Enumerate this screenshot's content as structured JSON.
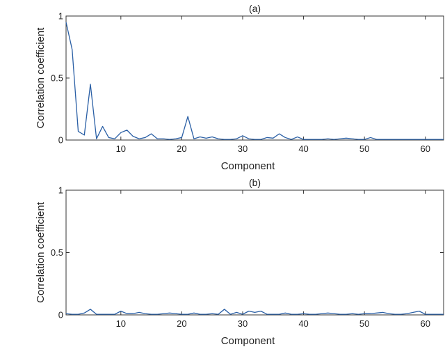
{
  "chart_data": [
    {
      "type": "line",
      "title": "(a)",
      "xlabel": "Component",
      "ylabel": "Correlation coefficient",
      "xlim": [
        1,
        63
      ],
      "ylim": [
        0,
        1
      ],
      "xticks": [
        10,
        20,
        30,
        40,
        50,
        60
      ],
      "yticks": [
        0,
        0.5,
        1
      ],
      "ytick_labels": [
        "0",
        "0.5",
        "1"
      ],
      "grid": false,
      "color": "#2a5fa5",
      "series": [
        {
          "x": [
            1,
            2,
            3,
            4,
            5,
            6,
            7,
            8,
            9,
            10,
            11,
            12,
            13,
            14,
            15,
            16,
            17,
            18,
            19,
            20,
            21,
            22,
            23,
            24,
            25,
            26,
            27,
            28,
            29,
            30,
            31,
            32,
            33,
            34,
            35,
            36,
            37,
            38,
            39,
            40,
            41,
            42,
            43,
            44,
            45,
            46,
            47,
            48,
            49,
            50,
            51,
            52,
            53,
            54,
            55,
            56,
            57,
            58,
            59,
            60,
            61,
            62,
            63
          ],
          "values": [
            0.95,
            0.73,
            0.07,
            0.04,
            0.45,
            0.01,
            0.11,
            0.02,
            0.01,
            0.06,
            0.08,
            0.03,
            0.01,
            0.02,
            0.05,
            0.01,
            0.01,
            0.005,
            0.01,
            0.02,
            0.19,
            0.01,
            0.025,
            0.015,
            0.025,
            0.01,
            0.005,
            0.005,
            0.01,
            0.035,
            0.01,
            0.005,
            0.005,
            0.02,
            0.015,
            0.05,
            0.02,
            0.005,
            0.025,
            0.005,
            0.005,
            0.005,
            0.005,
            0.01,
            0.005,
            0.01,
            0.015,
            0.01,
            0.005,
            0.005,
            0.02,
            0.005,
            0.005,
            0.005,
            0.005,
            0.005,
            0.005,
            0.005,
            0.005,
            0.005,
            0.005,
            0.005,
            0.005
          ]
        }
      ]
    },
    {
      "type": "line",
      "title": "(b)",
      "xlabel": "Component",
      "ylabel": "Correlation coefficient",
      "xlim": [
        1,
        63
      ],
      "ylim": [
        0,
        1
      ],
      "xticks": [
        10,
        20,
        30,
        40,
        50,
        60
      ],
      "yticks": [
        0,
        0.5,
        1
      ],
      "ytick_labels": [
        "0",
        "0.5",
        "1"
      ],
      "grid": false,
      "color": "#2a5fa5",
      "series": [
        {
          "x": [
            1,
            2,
            3,
            4,
            5,
            6,
            7,
            8,
            9,
            10,
            11,
            12,
            13,
            14,
            15,
            16,
            17,
            18,
            19,
            20,
            21,
            22,
            23,
            24,
            25,
            26,
            27,
            28,
            29,
            30,
            31,
            32,
            33,
            34,
            35,
            36,
            37,
            38,
            39,
            40,
            41,
            42,
            43,
            44,
            45,
            46,
            47,
            48,
            49,
            50,
            51,
            52,
            53,
            54,
            55,
            56,
            57,
            58,
            59,
            60,
            61,
            62,
            63
          ],
          "values": [
            0.01,
            0.005,
            0.005,
            0.015,
            0.045,
            0.005,
            0.005,
            0.005,
            0.005,
            0.03,
            0.01,
            0.01,
            0.02,
            0.01,
            0.005,
            0.005,
            0.01,
            0.015,
            0.01,
            0.005,
            0.005,
            0.015,
            0.005,
            0.005,
            0.01,
            0.005,
            0.045,
            0.005,
            0.02,
            0.005,
            0.03,
            0.02,
            0.03,
            0.005,
            0.005,
            0.005,
            0.015,
            0.005,
            0.005,
            0.01,
            0.005,
            0.005,
            0.01,
            0.015,
            0.01,
            0.005,
            0.005,
            0.01,
            0.005,
            0.01,
            0.01,
            0.015,
            0.02,
            0.01,
            0.005,
            0.005,
            0.01,
            0.02,
            0.03,
            0.005,
            0.005,
            0.005,
            0.005
          ]
        }
      ]
    }
  ]
}
